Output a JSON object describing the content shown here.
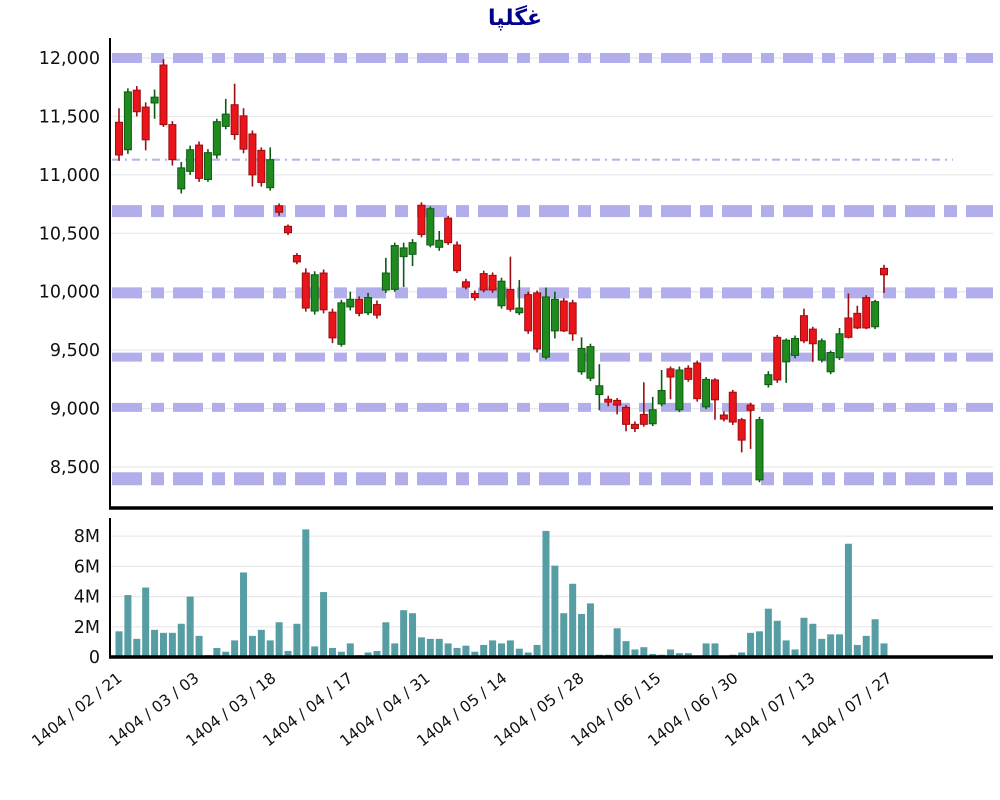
{
  "title": "غگلپا",
  "colors": {
    "title": "#00008b",
    "up_fill": "#1f8b1f",
    "up_stroke": "#0e5a12",
    "down_fill": "#e9151b",
    "down_stroke": "#9c0d10",
    "volume_bar": "#569da4",
    "band": "#b1aeeb",
    "grid": "#e8e8e8",
    "axis": "#000000",
    "tick_label": "#111111"
  },
  "price_axis": {
    "ticks": [
      12000,
      11500,
      11000,
      10500,
      10000,
      9500,
      9000,
      8500
    ]
  },
  "volume_axis": {
    "ticks": [
      {
        "label": "8M",
        "value": 8000000
      },
      {
        "label": "6M",
        "value": 6000000
      },
      {
        "label": "4M",
        "value": 4000000
      },
      {
        "label": "2M",
        "value": 2000000
      },
      {
        "label": "0",
        "value": 0
      }
    ]
  },
  "x_axis": {
    "labels": [
      "1404 / 02 / 21",
      "1404 / 03 / 03",
      "1404 / 03 / 18",
      "1404 / 04 / 17",
      "1404 / 04 / 31",
      "1404 / 05 / 14",
      "1404 / 05 / 28",
      "1404 / 06 / 15",
      "1404 / 06 / 30",
      "1404 / 07 / 13",
      "1404 / 07 / 27"
    ]
  },
  "chart_data": {
    "type": "candlestick+volume-bar",
    "title": "غگلپا",
    "ylabel": "",
    "price_range": [
      8200,
      12150
    ],
    "volume_range": [
      0,
      8500000
    ],
    "grid": true,
    "reference_line": {
      "price": 11130,
      "style": "thin-dash-dot"
    },
    "bands": [
      {
        "price": 12000,
        "thickness": 10
      },
      {
        "price": 10690,
        "thickness": 12
      },
      {
        "price": 9990,
        "thickness": 11
      },
      {
        "price": 9440,
        "thickness": 9
      },
      {
        "price": 9010,
        "thickness": 9
      },
      {
        "price": 8400,
        "thickness": 13
      }
    ],
    "series_format": [
      "open",
      "high",
      "low",
      "close",
      "volume"
    ],
    "candles": [
      [
        11450,
        11570,
        11120,
        11170,
        1700000
      ],
      [
        11215,
        11740,
        11180,
        11710,
        4100000
      ],
      [
        11725,
        11760,
        11500,
        11540,
        1200000
      ],
      [
        11580,
        11620,
        11210,
        11300,
        4600000
      ],
      [
        11615,
        11730,
        11480,
        11665,
        1800000
      ],
      [
        11940,
        11990,
        11410,
        11430,
        1600000
      ],
      [
        11430,
        11460,
        11080,
        11130,
        1600000
      ],
      [
        10880,
        11110,
        10840,
        11060,
        2200000
      ],
      [
        11030,
        11250,
        11000,
        11215,
        4000000
      ],
      [
        11255,
        11285,
        10940,
        10970,
        1400000
      ],
      [
        10960,
        11220,
        10940,
        11190,
        120000
      ],
      [
        11170,
        11480,
        11140,
        11455,
        600000
      ],
      [
        11415,
        11650,
        11390,
        11520,
        350000
      ],
      [
        11600,
        11780,
        11300,
        11345,
        1100000
      ],
      [
        11505,
        11570,
        11185,
        11220,
        5600000
      ],
      [
        11350,
        11380,
        10900,
        11000,
        1400000
      ],
      [
        11210,
        11235,
        10900,
        10935,
        1800000
      ],
      [
        10890,
        11235,
        10865,
        11130,
        1100000
      ],
      [
        10735,
        10755,
        10650,
        10680,
        2300000
      ],
      [
        10560,
        10575,
        10485,
        10505,
        400000
      ],
      [
        10310,
        10330,
        10235,
        10255,
        2200000
      ],
      [
        10160,
        10200,
        9830,
        9860,
        8450000
      ],
      [
        9835,
        10175,
        9805,
        10145,
        700000
      ],
      [
        10160,
        10190,
        9815,
        9845,
        4300000
      ],
      [
        9825,
        9855,
        9560,
        9605,
        600000
      ],
      [
        9550,
        9930,
        9530,
        9905,
        350000
      ],
      [
        9870,
        10000,
        9840,
        9935,
        900000
      ],
      [
        9935,
        9960,
        9790,
        9815,
        120000
      ],
      [
        9820,
        9990,
        9800,
        9950,
        300000
      ],
      [
        9890,
        9925,
        9770,
        9800,
        400000
      ],
      [
        10015,
        10290,
        9990,
        10160,
        2300000
      ],
      [
        10020,
        10420,
        10000,
        10395,
        900000
      ],
      [
        10300,
        10420,
        10040,
        10375,
        3100000
      ],
      [
        10320,
        10450,
        10220,
        10420,
        2900000
      ],
      [
        10740,
        10765,
        10465,
        10490,
        1300000
      ],
      [
        10400,
        10730,
        10380,
        10710,
        1200000
      ],
      [
        10380,
        10520,
        10350,
        10440,
        1200000
      ],
      [
        10630,
        10650,
        10400,
        10420,
        900000
      ],
      [
        10400,
        10430,
        10160,
        10180,
        600000
      ],
      [
        10085,
        10110,
        10020,
        10040,
        750000
      ],
      [
        9985,
        10010,
        9925,
        9950,
        350000
      ],
      [
        10155,
        10180,
        9995,
        10015,
        800000
      ],
      [
        10140,
        10165,
        9990,
        10015,
        1100000
      ],
      [
        9880,
        10120,
        9855,
        10090,
        900000
      ],
      [
        10020,
        10300,
        9830,
        9850,
        1100000
      ],
      [
        9820,
        10100,
        9800,
        9860,
        550000
      ],
      [
        9975,
        10000,
        9640,
        9665,
        300000
      ],
      [
        9990,
        10010,
        9480,
        9510,
        800000
      ],
      [
        9440,
        10035,
        9420,
        9955,
        8350000
      ],
      [
        9665,
        10000,
        9600,
        9935,
        6050000
      ],
      [
        9920,
        9945,
        9655,
        9665,
        2900000
      ],
      [
        9905,
        9930,
        9580,
        9640,
        4850000
      ],
      [
        9315,
        9610,
        9290,
        9515,
        2850000
      ],
      [
        9260,
        9555,
        9235,
        9530,
        3550000
      ],
      [
        9120,
        9380,
        8985,
        9195,
        150000
      ],
      [
        9080,
        9110,
        9020,
        9055,
        150000
      ],
      [
        9070,
        9090,
        8950,
        9030,
        1900000
      ],
      [
        9010,
        9030,
        8805,
        8865,
        1050000
      ],
      [
        8865,
        8890,
        8800,
        8830,
        500000
      ],
      [
        8950,
        9225,
        8845,
        8865,
        650000
      ],
      [
        8870,
        9100,
        8850,
        8990,
        200000
      ],
      [
        9040,
        9330,
        9020,
        9155,
        150000
      ],
      [
        9340,
        9360,
        9080,
        9270,
        500000
      ],
      [
        8990,
        9360,
        8970,
        9330,
        250000
      ],
      [
        9345,
        9370,
        9230,
        9250,
        250000
      ],
      [
        9390,
        9410,
        9060,
        9085,
        100000
      ],
      [
        9015,
        9270,
        8995,
        9250,
        900000
      ],
      [
        9245,
        9260,
        8905,
        9075,
        900000
      ],
      [
        8945,
        8975,
        8890,
        8910,
        100000
      ],
      [
        9140,
        9160,
        8860,
        8885,
        150000
      ],
      [
        8905,
        8920,
        8625,
        8730,
        300000
      ],
      [
        9030,
        9050,
        8655,
        8985,
        1600000
      ],
      [
        8390,
        8930,
        8370,
        8905,
        1700000
      ],
      [
        9205,
        9320,
        9180,
        9290,
        3200000
      ],
      [
        9610,
        9630,
        9220,
        9245,
        2400000
      ],
      [
        9400,
        9600,
        9220,
        9585,
        1100000
      ],
      [
        9455,
        9625,
        9430,
        9600,
        500000
      ],
      [
        9795,
        9855,
        9560,
        9580,
        2600000
      ],
      [
        9680,
        9700,
        9400,
        9555,
        2200000
      ],
      [
        9415,
        9600,
        9395,
        9580,
        1200000
      ],
      [
        9315,
        9495,
        9295,
        9480,
        1500000
      ],
      [
        9435,
        9690,
        9415,
        9640,
        1500000
      ],
      [
        9775,
        9985,
        9600,
        9610,
        7500000
      ],
      [
        9815,
        9880,
        9680,
        9690,
        800000
      ],
      [
        9950,
        9970,
        9680,
        9690,
        1400000
      ],
      [
        9700,
        9930,
        9680,
        9915,
        2500000
      ],
      [
        10200,
        10230,
        9990,
        10145,
        900000
      ]
    ]
  }
}
